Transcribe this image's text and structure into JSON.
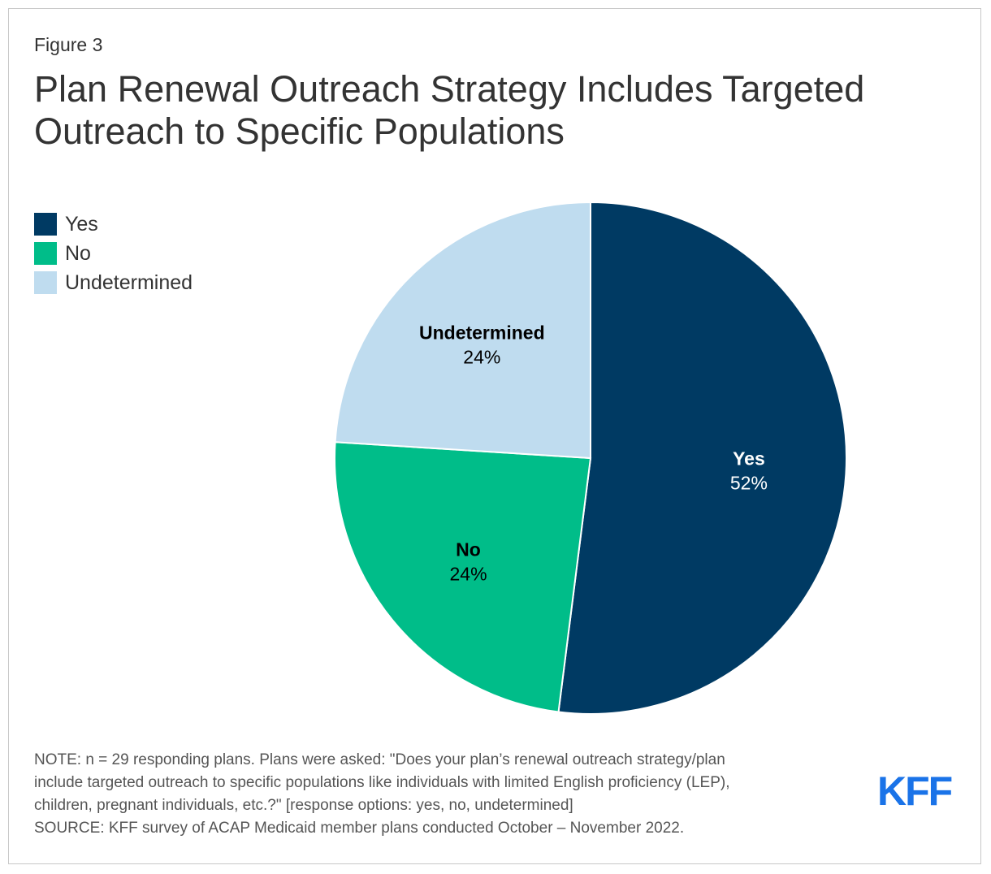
{
  "figure_label": "Figure 3",
  "title_lines": [
    "Plan Renewal Outreach Strategy Includes Targeted",
    "Outreach to Specific Populations"
  ],
  "chart_data": {
    "type": "pie",
    "title": "Plan Renewal Outreach Strategy Includes Targeted Outreach to Specific Populations",
    "slices": [
      {
        "label": "Yes",
        "value": 52,
        "value_label": "52%",
        "color": "#003a63",
        "text_color": "#ffffff"
      },
      {
        "label": "No",
        "value": 24,
        "value_label": "24%",
        "color": "#00bd89",
        "text_color": "#000000"
      },
      {
        "label": "Undetermined",
        "value": 24,
        "value_label": "24%",
        "color": "#bfdcef",
        "text_color": "#000000"
      }
    ],
    "legend_position": "top-left"
  },
  "legend": [
    {
      "label": "Yes",
      "color": "#003a63"
    },
    {
      "label": "No",
      "color": "#00bd89"
    },
    {
      "label": "Undetermined",
      "color": "#bfdcef"
    }
  ],
  "notes": [
    "NOTE: n = 29 responding plans. Plans were asked: \"Does your plan’s renewal outreach strategy/plan",
    "include targeted outreach to specific populations like individuals with limited English proficiency (LEP),",
    "children, pregnant individuals, etc.?\" [response options: yes, no, undetermined]",
    "SOURCE: KFF survey of ACAP Medicaid member plans conducted October – November 2022."
  ],
  "logo_text": "KFF",
  "logo_color": "#1a73e8"
}
